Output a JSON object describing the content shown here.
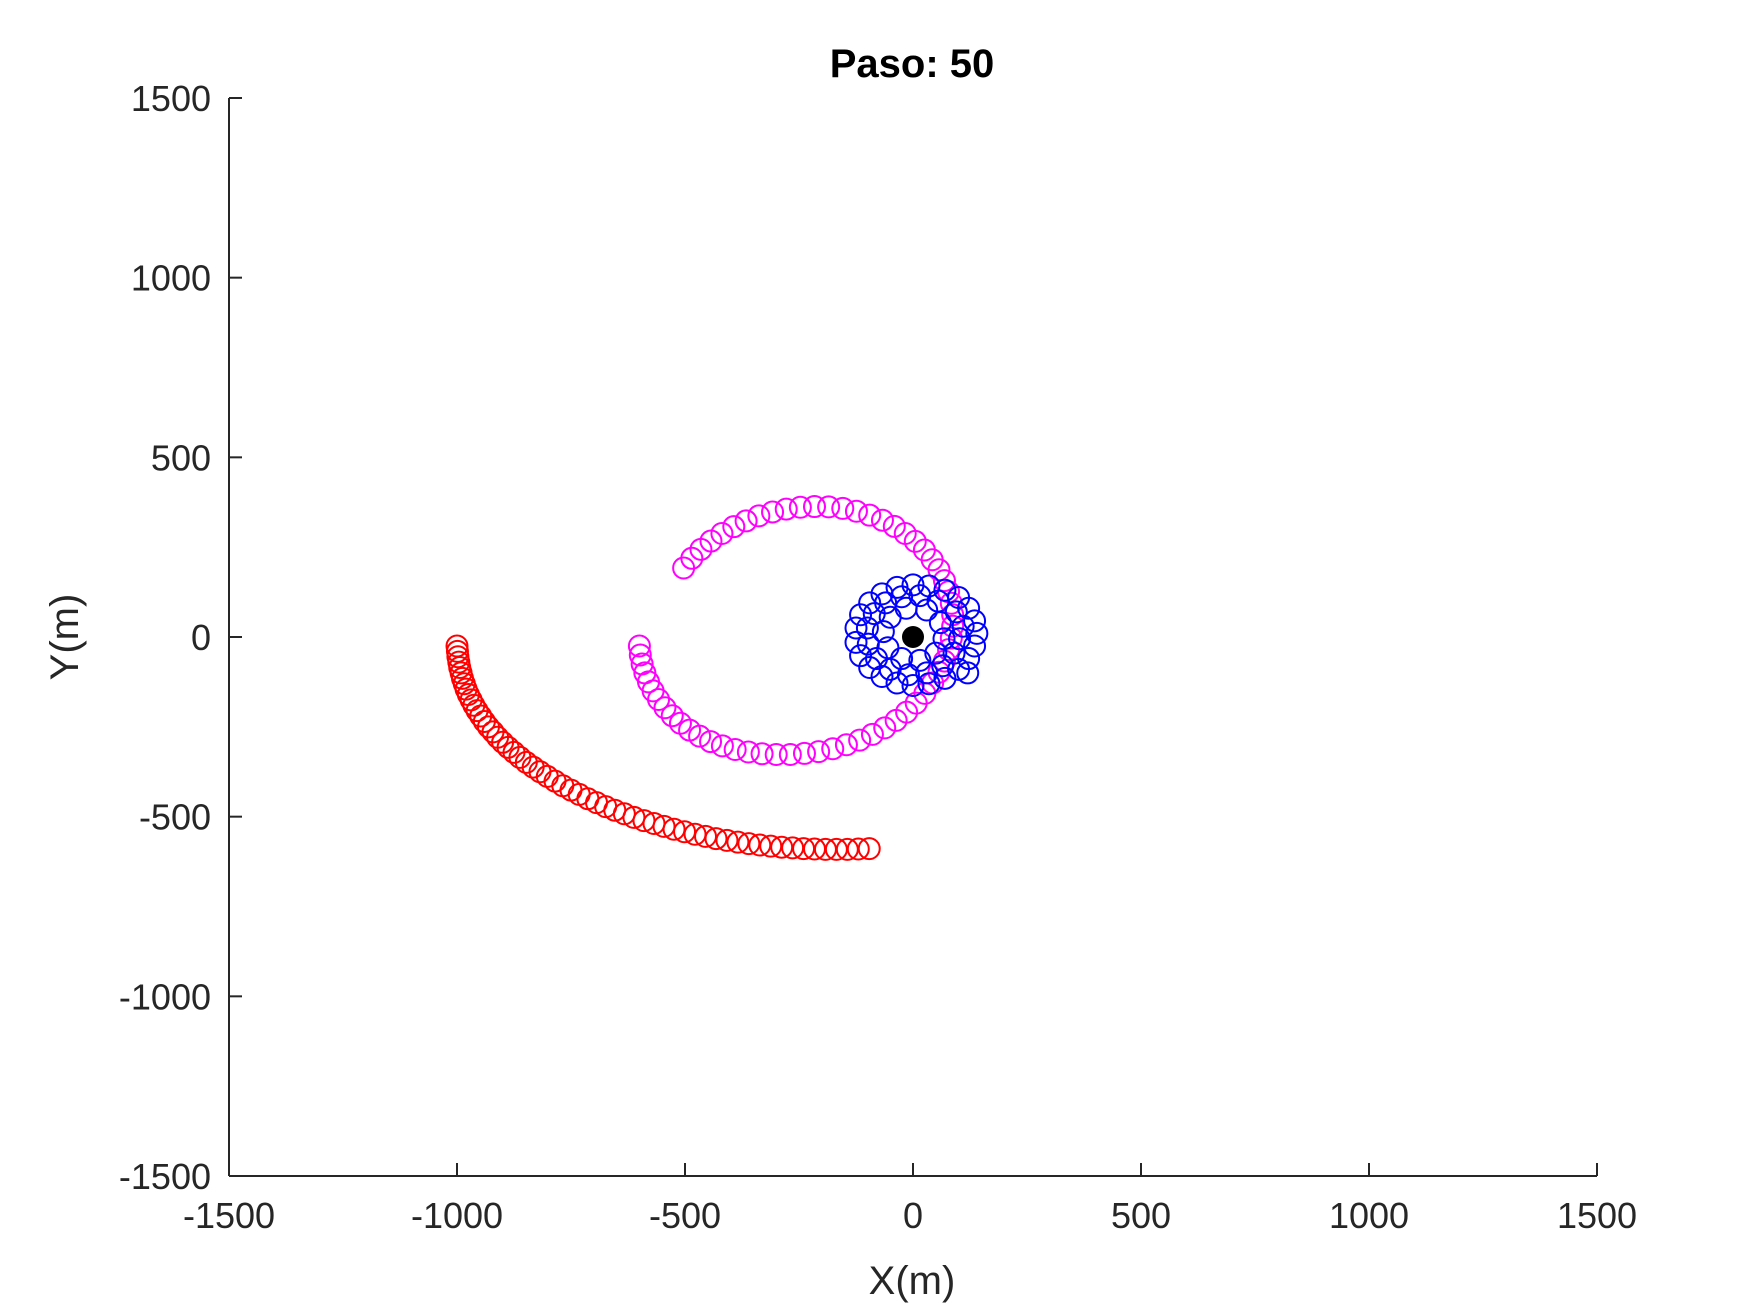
{
  "chart_data": {
    "type": "scatter",
    "title": "Paso: 50",
    "xlabel": "X(m)",
    "ylabel": "Y(m)",
    "xlim": [
      -1500,
      1500
    ],
    "ylim": [
      -1500,
      1500
    ],
    "xticks": [
      -1500,
      -1000,
      -500,
      0,
      500,
      1000,
      1500
    ],
    "yticks": [
      -1500,
      -1000,
      -500,
      0,
      500,
      1000,
      1500
    ],
    "xtick_labels": [
      "-1500",
      "-1000",
      "-500",
      "0",
      "500",
      "1000",
      "1500"
    ],
    "ytick_labels": [
      "-1500",
      "-1000",
      "-500",
      "0",
      "500",
      "1000",
      "1500"
    ],
    "grid": false,
    "colors": {
      "red": "#ff0000",
      "magenta": "#ff00ff",
      "blue": "#0000ff",
      "center": "#000000",
      "axis": "#262626"
    },
    "series": [
      {
        "color": "#ff0000",
        "marker": "open-circle",
        "points": [
          [
            -1000,
            -25
          ],
          [
            -999,
            -40
          ],
          [
            -998,
            -55
          ],
          [
            -996,
            -70
          ],
          [
            -994,
            -85
          ],
          [
            -991,
            -100
          ],
          [
            -988,
            -115
          ],
          [
            -984,
            -130
          ],
          [
            -980,
            -145
          ],
          [
            -975,
            -160
          ],
          [
            -969,
            -175
          ],
          [
            -963,
            -190
          ],
          [
            -956,
            -205
          ],
          [
            -948,
            -220
          ],
          [
            -940,
            -235
          ],
          [
            -931,
            -250
          ],
          [
            -921,
            -264
          ],
          [
            -911,
            -279
          ],
          [
            -900,
            -293
          ],
          [
            -888,
            -307
          ],
          [
            -875,
            -321
          ],
          [
            -862,
            -335
          ],
          [
            -848,
            -349
          ],
          [
            -833,
            -362
          ],
          [
            -818,
            -375
          ],
          [
            -802,
            -388
          ],
          [
            -785,
            -401
          ],
          [
            -768,
            -414
          ],
          [
            -750,
            -426
          ],
          [
            -732,
            -438
          ],
          [
            -713,
            -450
          ],
          [
            -694,
            -461
          ],
          [
            -674,
            -472
          ],
          [
            -654,
            -482
          ],
          [
            -633,
            -492
          ],
          [
            -612,
            -502
          ],
          [
            -590,
            -511
          ],
          [
            -568,
            -519
          ],
          [
            -546,
            -527
          ],
          [
            -524,
            -535
          ],
          [
            -501,
            -542
          ],
          [
            -478,
            -549
          ],
          [
            -455,
            -555
          ],
          [
            -432,
            -561
          ],
          [
            -408,
            -566
          ],
          [
            -384,
            -571
          ],
          [
            -360,
            -575
          ],
          [
            -336,
            -579
          ],
          [
            -312,
            -582
          ],
          [
            -288,
            -585
          ],
          [
            -264,
            -587
          ],
          [
            -240,
            -589
          ],
          [
            -216,
            -590
          ],
          [
            -192,
            -591
          ],
          [
            -168,
            -591
          ],
          [
            -144,
            -591
          ],
          [
            -120,
            -590
          ],
          [
            -96,
            -589
          ]
        ]
      },
      {
        "color": "#ff00ff",
        "marker": "open-circle",
        "points": [
          [
            -600,
            -25
          ],
          [
            -598,
            -50
          ],
          [
            -594,
            -75
          ],
          [
            -588,
            -100
          ],
          [
            -580,
            -125
          ],
          [
            -570,
            -150
          ],
          [
            -558,
            -174
          ],
          [
            -544,
            -197
          ],
          [
            -528,
            -219
          ],
          [
            -510,
            -240
          ],
          [
            -490,
            -259
          ],
          [
            -468,
            -276
          ],
          [
            -444,
            -291
          ],
          [
            -418,
            -303
          ],
          [
            -390,
            -313
          ],
          [
            -361,
            -320
          ],
          [
            -331,
            -325
          ],
          [
            -300,
            -327
          ],
          [
            -269,
            -327
          ],
          [
            -238,
            -324
          ],
          [
            -207,
            -319
          ],
          [
            -176,
            -311
          ],
          [
            -146,
            -300
          ],
          [
            -117,
            -287
          ],
          [
            -89,
            -271
          ],
          [
            -62,
            -253
          ],
          [
            -37,
            -232
          ],
          [
            -14,
            -209
          ],
          [
            7,
            -184
          ],
          [
            26,
            -157
          ],
          [
            43,
            -128
          ],
          [
            57,
            -98
          ],
          [
            69,
            -67
          ],
          [
            78,
            -35
          ],
          [
            84,
            -3
          ],
          [
            87,
            30
          ],
          [
            87,
            62
          ],
          [
            84,
            94
          ],
          [
            78,
            126
          ],
          [
            69,
            157
          ],
          [
            57,
            187
          ],
          [
            42,
            215
          ],
          [
            25,
            242
          ],
          [
            5,
            266
          ],
          [
            -17,
            288
          ],
          [
            -41,
            308
          ],
          [
            -67,
            325
          ],
          [
            -95,
            339
          ],
          [
            -124,
            350
          ],
          [
            -154,
            358
          ],
          [
            -185,
            362
          ],
          [
            -216,
            363
          ],
          [
            -247,
            361
          ],
          [
            -278,
            356
          ],
          [
            -308,
            348
          ],
          [
            -338,
            337
          ],
          [
            -366,
            323
          ],
          [
            -393,
            307
          ],
          [
            -419,
            288
          ],
          [
            -443,
            267
          ],
          [
            -465,
            244
          ],
          [
            -485,
            219
          ],
          [
            -503,
            192
          ]
        ]
      },
      {
        "color": "#0000ff",
        "marker": "open-circle",
        "points": [
          [
            140,
            10
          ],
          [
            135,
            45
          ],
          [
            122,
            80
          ],
          [
            100,
            110
          ],
          [
            70,
            130
          ],
          [
            35,
            142
          ],
          [
            0,
            145
          ],
          [
            -35,
            138
          ],
          [
            -68,
            120
          ],
          [
            -95,
            95
          ],
          [
            -115,
            62
          ],
          [
            -125,
            25
          ],
          [
            -125,
            -15
          ],
          [
            -115,
            -52
          ],
          [
            -95,
            -85
          ],
          [
            -68,
            -110
          ],
          [
            -35,
            -128
          ],
          [
            0,
            -135
          ],
          [
            35,
            -130
          ],
          [
            70,
            -115
          ],
          [
            100,
            -90
          ],
          [
            122,
            -60
          ],
          [
            135,
            -25
          ],
          [
            110,
            30
          ],
          [
            95,
            70
          ],
          [
            55,
            100
          ],
          [
            15,
            115
          ],
          [
            -25,
            112
          ],
          [
            -60,
            95
          ],
          [
            -85,
            65
          ],
          [
            -100,
            25
          ],
          [
            -98,
            -20
          ],
          [
            -80,
            -60
          ],
          [
            -50,
            -90
          ],
          [
            -10,
            -105
          ],
          [
            30,
            -100
          ],
          [
            65,
            -80
          ],
          [
            90,
            -45
          ],
          [
            102,
            -5
          ],
          [
            60,
            40
          ],
          [
            30,
            75
          ],
          [
            -15,
            80
          ],
          [
            -50,
            55
          ],
          [
            -65,
            15
          ],
          [
            -55,
            -30
          ],
          [
            -25,
            -60
          ],
          [
            15,
            -65
          ],
          [
            50,
            -45
          ],
          [
            68,
            -5
          ],
          [
            120,
            -100
          ]
        ]
      }
    ],
    "center_point": {
      "x": 0,
      "y": 0,
      "color": "#000000",
      "marker": "filled-circle"
    }
  }
}
